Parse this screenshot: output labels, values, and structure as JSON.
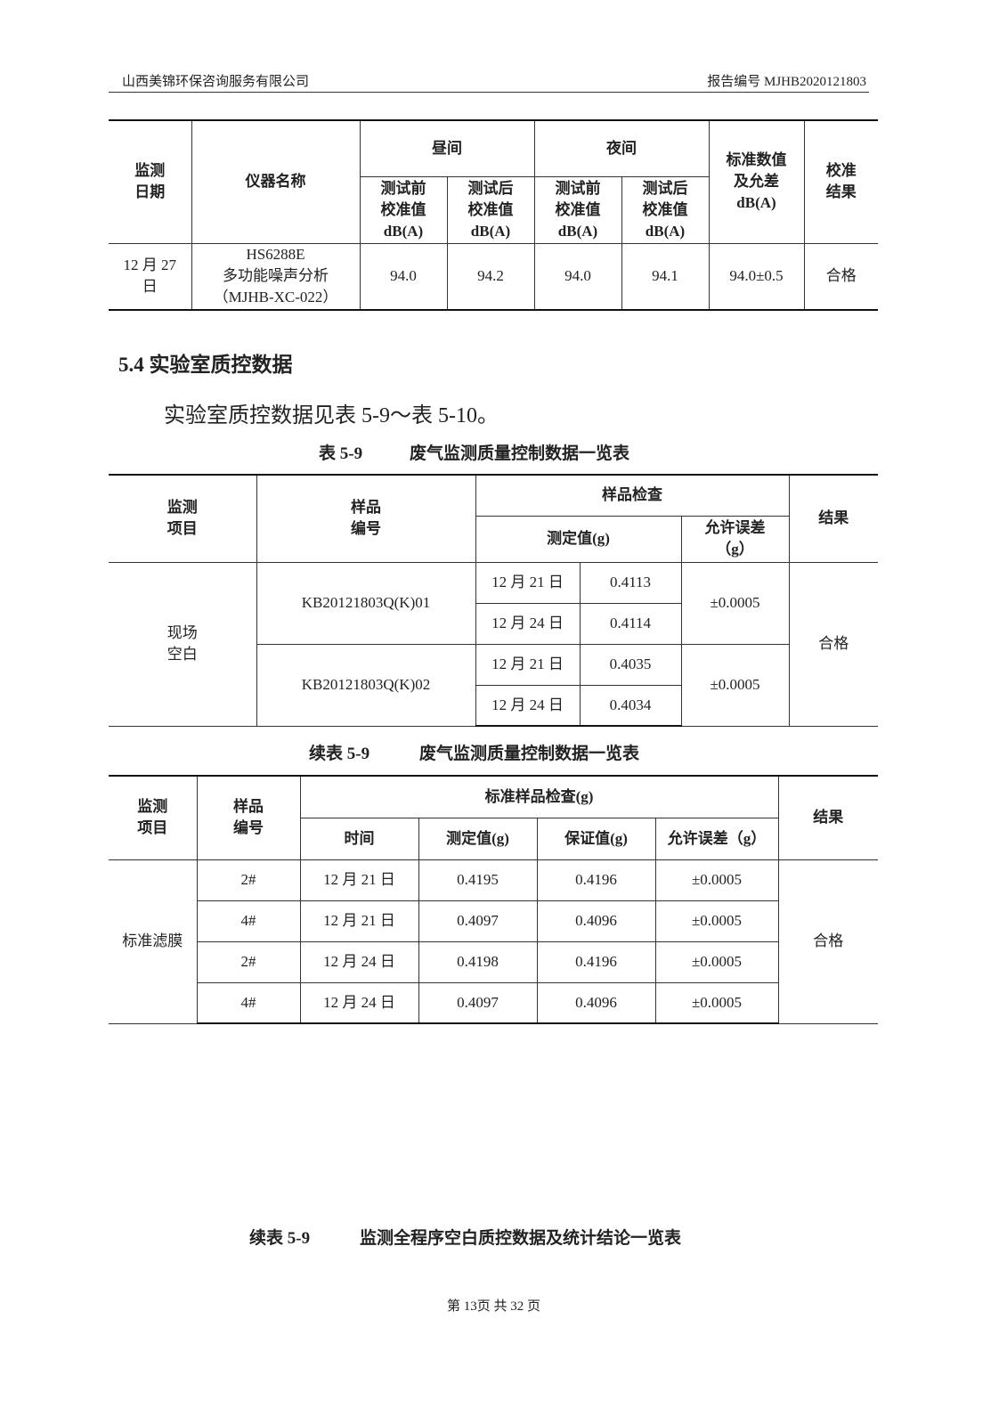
{
  "header": {
    "company": "山西美锦环保咨询服务有限公司",
    "report_no": "报告编号 MJHB2020121803"
  },
  "table_calib": {
    "headers": {
      "date": "监测\n日期",
      "instrument": "仪器名称",
      "day": "昼间",
      "night": "夜间",
      "pre": "测试前\n校准值\ndB(A)",
      "post": "测试后\n校准值\ndB(A)",
      "std": "标准数值\n及允差\ndB(A)",
      "result": "校准\n结果"
    },
    "row": {
      "date": "12 月 27\n日",
      "instrument": "HS6288E\n多功能噪声分析\n（MJHB-XC-022）",
      "day_pre": "94.0",
      "day_post": "94.2",
      "night_pre": "94.0",
      "night_post": "94.1",
      "std": "94.0±0.5",
      "result": "合格"
    }
  },
  "section": {
    "title": "5.4 实验室质控数据",
    "text": "实验室质控数据见表 5-9～表 5-10。"
  },
  "table_59": {
    "caption_no": "表 5-9",
    "caption": "废气监测质量控制数据一览表",
    "headers": {
      "item": "监测\n项目",
      "sample": "样品\n编号",
      "check": "样品检查",
      "measured": "测定值(g)",
      "tolerance": "允许误差\n（g）",
      "result": "结果"
    },
    "item": "现场\n空白",
    "result": "合格",
    "samples": [
      {
        "id": "KB20121803Q(K)01",
        "tolerance": "±0.0005",
        "rows": [
          {
            "date": "12 月 21 日",
            "value": "0.4113"
          },
          {
            "date": "12 月 24 日",
            "value": "0.4114"
          }
        ]
      },
      {
        "id": "KB20121803Q(K)02",
        "tolerance": "±0.0005",
        "rows": [
          {
            "date": "12 月 21 日",
            "value": "0.4035"
          },
          {
            "date": "12 月 24 日",
            "value": "0.4034"
          }
        ]
      }
    ]
  },
  "table_59b": {
    "caption_no": "续表 5-9",
    "caption": "废气监测质量控制数据一览表",
    "headers": {
      "item": "监测\n项目",
      "sample": "样品\n编号",
      "check": "标准样品检查(g)",
      "time": "时间",
      "measured": "测定值(g)",
      "certified": "保证值(g)",
      "tolerance": "允许误差（g）",
      "result": "结果"
    },
    "item": "标准滤膜",
    "result": "合格",
    "rows": [
      {
        "id": "2#",
        "date": "12 月 21 日",
        "measured": "0.4195",
        "certified": "0.4196",
        "tolerance": "±0.0005"
      },
      {
        "id": "4#",
        "date": "12 月 21 日",
        "measured": "0.4097",
        "certified": "0.4096",
        "tolerance": "±0.0005"
      },
      {
        "id": "2#",
        "date": "12 月 24 日",
        "measured": "0.4198",
        "certified": "0.4196",
        "tolerance": "±0.0005"
      },
      {
        "id": "4#",
        "date": "12 月 24 日",
        "measured": "0.4097",
        "certified": "0.4096",
        "tolerance": "±0.0005"
      }
    ]
  },
  "table_59c": {
    "caption_no": "续表 5-9",
    "caption": "监测全程序空白质控数据及统计结论一览表"
  },
  "footer": {
    "page": "第 13页  共 32 页"
  }
}
